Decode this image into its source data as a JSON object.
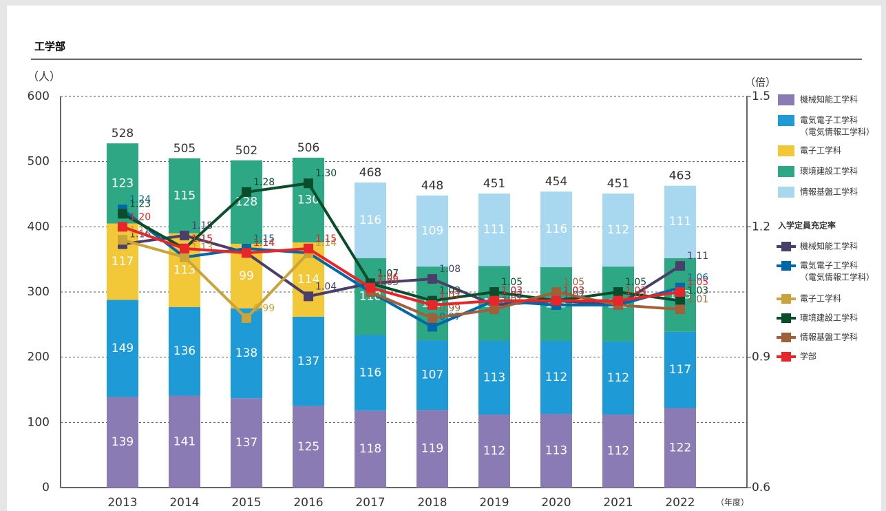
{
  "chart_data": {
    "type": "bar",
    "title": "工学部",
    "y_label": "（人）",
    "y2_label": "（倍）",
    "x_label": "（年度）",
    "legend_title_y2": "入学定員充定率",
    "categories": [
      "2013",
      "2014",
      "2015",
      "2016",
      "2017",
      "2018",
      "2019",
      "2020",
      "2021",
      "2022"
    ],
    "totals": [
      528,
      505,
      502,
      506,
      468,
      448,
      451,
      454,
      451,
      463
    ],
    "ylim": [
      0,
      600
    ],
    "yticks": [
      0,
      100,
      200,
      300,
      400,
      500,
      600
    ],
    "y2lim": [
      0.6,
      1.5
    ],
    "y2ticks": [
      0.6,
      0.9,
      1.2,
      1.5
    ],
    "grid": true,
    "series": [
      {
        "type": "bar",
        "name": "機械知能工学科",
        "color": "#8a7bb5",
        "values": [
          139,
          141,
          137,
          125,
          118,
          119,
          112,
          113,
          112,
          122
        ]
      },
      {
        "type": "bar",
        "name": "電気電子工学科",
        "subname": "（電気情報工学科）",
        "color": "#1e9ad6",
        "values": [
          149,
          136,
          138,
          137,
          116,
          107,
          113,
          112,
          112,
          117
        ]
      },
      {
        "type": "bar",
        "name": "電子工学科",
        "color": "#f2c738",
        "values": [
          117,
          113,
          99,
          114,
          null,
          null,
          null,
          null,
          null,
          null
        ]
      },
      {
        "type": "bar",
        "name": "環境建設工学科",
        "color": "#2ea784",
        "values": [
          123,
          115,
          128,
          130,
          118,
          113,
          115,
          113,
          115,
          113
        ]
      },
      {
        "type": "bar",
        "name": "情報基盤工学科",
        "color": "#a8d8ef",
        "values": [
          null,
          null,
          null,
          null,
          116,
          109,
          111,
          116,
          112,
          111
        ]
      },
      {
        "type": "line",
        "axis": "y2",
        "name": "機械知能工学科",
        "color": "#4a3f6b",
        "values": [
          1.16,
          1.18,
          1.14,
          1.04,
          1.07,
          1.08,
          1.02,
          1.03,
          1.02,
          1.11
        ],
        "value_labels": [
          "1.16",
          "1.18",
          "1.14",
          "1.04",
          "1.07",
          "1.08",
          "1.02",
          "1.03",
          "1.02",
          "1.11"
        ]
      },
      {
        "type": "line",
        "axis": "y2",
        "name": "電気電子工学科",
        "subname": "（電気情報工学科）",
        "color": "#0068a8",
        "values": [
          1.24,
          1.13,
          1.15,
          1.14,
          1.05,
          0.97,
          1.03,
          1.02,
          1.02,
          1.06
        ],
        "value_labels": [
          "1.24",
          "1.13",
          "1.15",
          "1.14",
          "1.05",
          "0.97",
          "1.03",
          "1.02",
          "1.02",
          "1.06"
        ]
      },
      {
        "type": "line",
        "axis": "y2",
        "name": "電子工学科",
        "color": "#c9a43a",
        "values": [
          1.17,
          1.13,
          0.99,
          1.14,
          null,
          null,
          null,
          null,
          null,
          null
        ],
        "value_labels": [
          "1.17",
          "1.13",
          "0.99",
          "1.14",
          null,
          null,
          null,
          null,
          null,
          null
        ]
      },
      {
        "type": "line",
        "axis": "y2",
        "name": "環境建設工学科",
        "color": "#0a4d2a",
        "values": [
          1.23,
          1.15,
          1.28,
          1.3,
          1.07,
          1.03,
          1.05,
          1.03,
          1.05,
          1.03
        ],
        "value_labels": [
          "1.23",
          "1.15",
          "1.28",
          "1.30",
          "1.07",
          "1.03",
          "1.05",
          "1.03",
          "1.05",
          "1.03"
        ]
      },
      {
        "type": "line",
        "axis": "y2",
        "name": "情報基盤工学科",
        "color": "#a0603a",
        "values": [
          null,
          null,
          null,
          null,
          1.05,
          0.99,
          1.01,
          1.05,
          1.02,
          1.01
        ],
        "value_labels": [
          null,
          null,
          null,
          null,
          "1.05",
          "0.99",
          "1.01",
          "1.05",
          "1.02",
          "1.01"
        ]
      },
      {
        "type": "line",
        "axis": "y2",
        "name": "学部",
        "color": "#e8262a",
        "values": [
          1.2,
          1.15,
          1.14,
          1.15,
          1.06,
          1.02,
          1.03,
          1.03,
          1.03,
          1.05
        ],
        "value_labels": [
          "1.20",
          "1.15",
          "1.14",
          "1.15",
          "1.06",
          "1.02",
          "1.03",
          "1.03",
          "1.03",
          "1.05"
        ]
      }
    ]
  }
}
